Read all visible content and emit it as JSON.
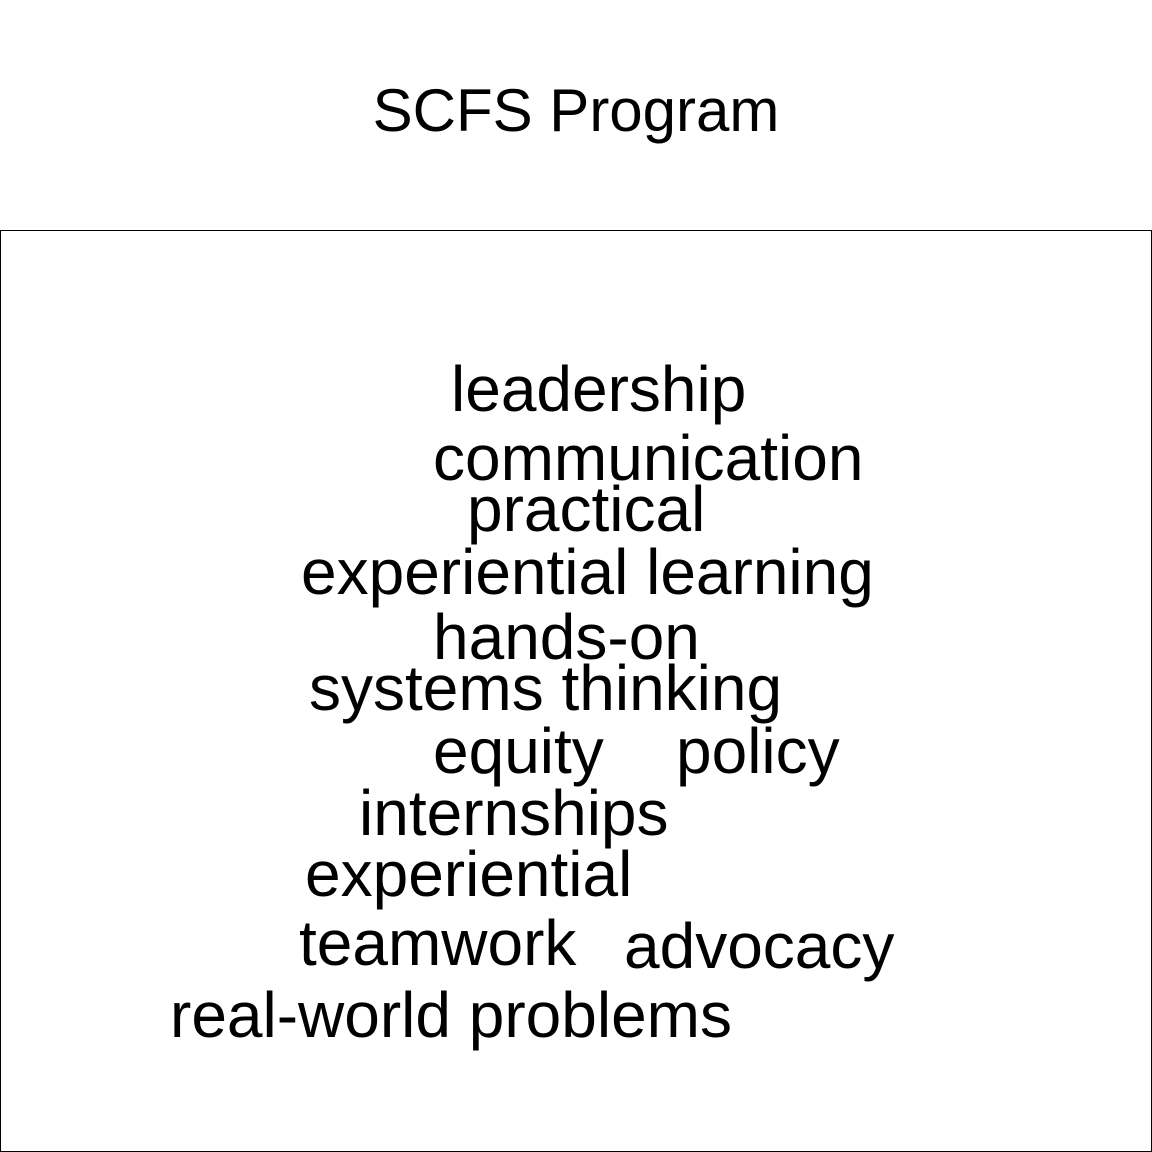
{
  "title": "SCFS Program",
  "words": [
    "leadership",
    "communication",
    "practical",
    "experiential learning",
    "hands-on",
    "systems thinking",
    "equity",
    "policy",
    "internships",
    "experiential",
    "teamwork",
    "advocacy",
    "real-world problems"
  ]
}
